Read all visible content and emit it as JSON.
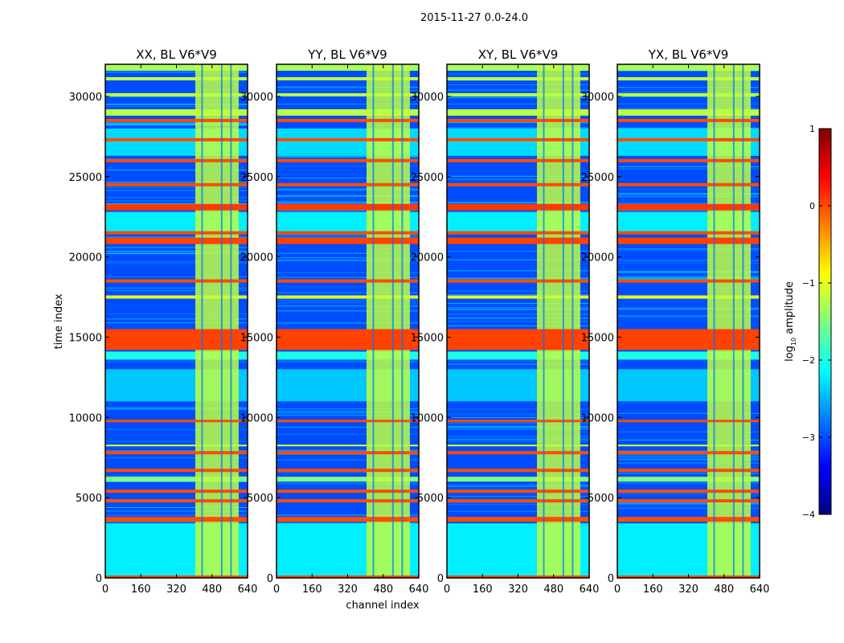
{
  "chart_data": {
    "type": "heatmap",
    "title": "2015-11-27 0.0-24.0",
    "xlabel": "channel index",
    "ylabel": "time index",
    "xlim": [
      0,
      640
    ],
    "ylim": [
      0,
      32000
    ],
    "xticks": [
      0,
      160,
      320,
      480,
      640
    ],
    "yticks": [
      0,
      5000,
      10000,
      15000,
      20000,
      25000,
      30000
    ],
    "panels": [
      {
        "title": "XX, BL V6*V9"
      },
      {
        "title": "YY, BL V6*V9"
      },
      {
        "title": "XY, BL V6*V9"
      },
      {
        "title": "YX, BL V6*V9"
      }
    ],
    "colorbar": {
      "label_main": "log",
      "label_sub": "10",
      "label_rest": " amplitude",
      "range": [
        -4,
        1
      ],
      "ticks": [
        -4,
        -3,
        -2,
        -1,
        0,
        1
      ]
    },
    "background_level": -3.0,
    "rfi_channels": {
      "range": [
        405,
        600
      ],
      "level": -1.2,
      "gaps": [
        432,
        520,
        562
      ]
    },
    "time_bands": [
      {
        "range": [
          0,
          150
        ],
        "level": 0.0
      },
      {
        "range": [
          150,
          3400
        ],
        "level": -2.2
      },
      {
        "range": [
          3500,
          3800
        ],
        "level": 0.0
      },
      {
        "range": [
          4700,
          4900
        ],
        "level": 0.0
      },
      {
        "range": [
          5300,
          5500
        ],
        "level": 0.0
      },
      {
        "range": [
          6000,
          6300
        ],
        "level": -1.5
      },
      {
        "range": [
          6600,
          6800
        ],
        "level": 0.0
      },
      {
        "range": [
          7700,
          7900
        ],
        "level": 0.0
      },
      {
        "range": [
          8200,
          8300
        ],
        "level": -1.0
      },
      {
        "range": [
          9700,
          9850
        ],
        "level": 0.0
      },
      {
        "range": [
          11000,
          13000
        ],
        "level": -2.4
      },
      {
        "range": [
          13600,
          14100
        ],
        "level": -2.0
      },
      {
        "range": [
          14200,
          15500
        ],
        "level": 0.05
      },
      {
        "range": [
          17400,
          17600
        ],
        "level": -1.0
      },
      {
        "range": [
          18400,
          18600
        ],
        "level": 0.0
      },
      {
        "range": [
          20800,
          21200
        ],
        "level": 0.05
      },
      {
        "range": [
          21400,
          21600
        ],
        "level": 0.0
      },
      {
        "range": [
          21600,
          22800
        ],
        "level": -2.2
      },
      {
        "range": [
          22900,
          23300
        ],
        "level": 0.1
      },
      {
        "range": [
          24400,
          24600
        ],
        "level": 0.0
      },
      {
        "range": [
          25900,
          26100
        ],
        "level": 0.0
      },
      {
        "range": [
          26300,
          28000
        ],
        "level": -2.3
      },
      {
        "range": [
          27200,
          27400
        ],
        "level": 0.0
      },
      {
        "range": [
          28400,
          28600
        ],
        "level": 0.0
      },
      {
        "range": [
          28800,
          29200
        ],
        "level": -1.2
      },
      {
        "range": [
          30000,
          30200
        ],
        "level": -1.2
      },
      {
        "range": [
          31000,
          31200
        ],
        "level": -1.2
      },
      {
        "range": [
          31600,
          32000
        ],
        "level": -1.3
      }
    ]
  }
}
